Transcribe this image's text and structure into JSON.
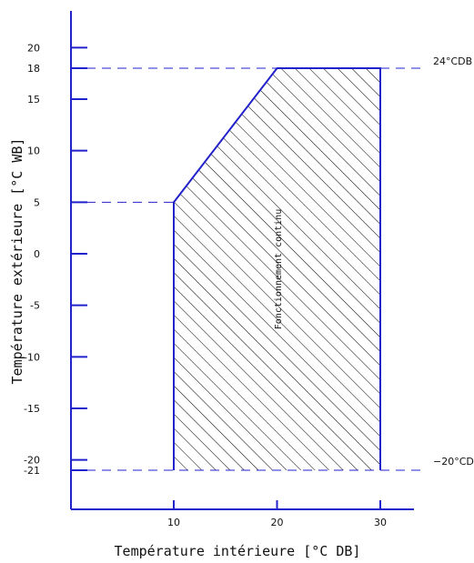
{
  "chart_data": {
    "type": "area",
    "xlabel": "Température intérieure [°C DB]",
    "ylabel": "Température extérieure [°C WB]",
    "x_ticks": [
      10,
      20,
      30
    ],
    "y_ticks": [
      20,
      18,
      15,
      10,
      5,
      0,
      -5,
      -10,
      -15,
      -20,
      -21
    ],
    "xlim": [
      0,
      35
    ],
    "ylim": [
      -24,
      26
    ],
    "grid": false,
    "operating_zone": {
      "label": "Fonctionnement continu",
      "polygon": [
        {
          "x": 10,
          "y": -21
        },
        {
          "x": 10,
          "y": 5
        },
        {
          "x": 20,
          "y": 18
        },
        {
          "x": 30,
          "y": 18
        },
        {
          "x": 30,
          "y": -21
        }
      ]
    },
    "reference_lines": [
      {
        "y": 18,
        "label": "24°CDB"
      },
      {
        "y": 5,
        "label": ""
      },
      {
        "y": -21,
        "label": "−20°CDB"
      }
    ],
    "colors": {
      "boundary": "#2222cc",
      "hatch": "#000000",
      "axis": "#2222cc"
    }
  }
}
